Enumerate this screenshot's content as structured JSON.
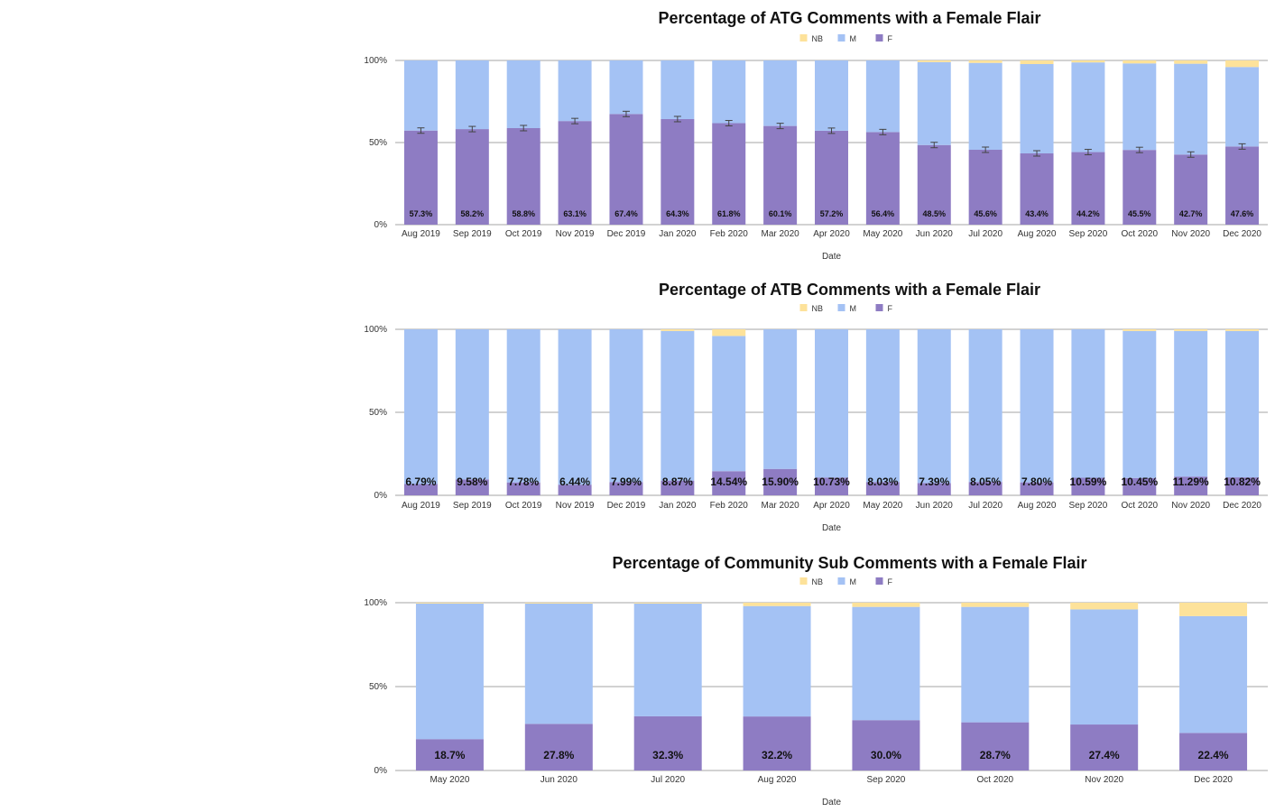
{
  "colors": {
    "NB": "#fde29a",
    "M": "#a4c2f4",
    "F": "#8e7cc3",
    "grid": "#b7b7b7",
    "errorbar": "#444444"
  },
  "chart_data": [
    {
      "type": "bar",
      "stacked": true,
      "title": "Percentage of ATG Comments with a Female Flair",
      "xlabel": "Date",
      "ylabel": "",
      "ylim": [
        0,
        100
      ],
      "yticks": [
        "0%",
        "50%",
        "100%"
      ],
      "legend": [
        "NB",
        "M",
        "F"
      ],
      "legend_position": "top",
      "grid": true,
      "error_bars": true,
      "categories": [
        "Aug 2019",
        "Sep 2019",
        "Oct 2019",
        "Nov 2019",
        "Dec 2019",
        "Jan 2020",
        "Feb 2020",
        "Mar 2020",
        "Apr 2020",
        "May 2020",
        "Jun 2020",
        "Jul 2020",
        "Aug 2020",
        "Sep 2020",
        "Oct 2020",
        "Nov 2020",
        "Dec 2020"
      ],
      "series": [
        {
          "name": "F",
          "values": [
            57.3,
            58.2,
            58.8,
            63.1,
            67.4,
            64.3,
            61.8,
            60.1,
            57.2,
            56.4,
            48.5,
            45.6,
            43.4,
            44.2,
            45.5,
            42.7,
            47.6
          ]
        },
        {
          "name": "M",
          "values": [
            42.7,
            41.8,
            41.2,
            36.9,
            32.6,
            35.7,
            38.2,
            39.9,
            42.8,
            43.6,
            50.5,
            52.9,
            54.4,
            54.6,
            52.7,
            55.3,
            48.4
          ]
        },
        {
          "name": "NB",
          "values": [
            0,
            0,
            0,
            0,
            0,
            0,
            0,
            0,
            0,
            0,
            1.0,
            1.5,
            2.2,
            1.2,
            1.8,
            2.0,
            4.0
          ]
        }
      ],
      "data_labels": [
        "57.3%",
        "58.2%",
        "58.8%",
        "63.1%",
        "67.4%",
        "64.3%",
        "61.8%",
        "60.1%",
        "57.2%",
        "56.4%",
        "48.5%",
        "45.6%",
        "43.4%",
        "44.2%",
        "45.5%",
        "42.7%",
        "47.6%"
      ]
    },
    {
      "type": "bar",
      "stacked": true,
      "title": "Percentage of ATB Comments with a Female Flair",
      "xlabel": "Date",
      "ylabel": "",
      "ylim": [
        0,
        100
      ],
      "yticks": [
        "0%",
        "50%",
        "100%"
      ],
      "legend": [
        "NB",
        "M",
        "F"
      ],
      "legend_position": "top",
      "grid": true,
      "categories": [
        "Aug 2019",
        "Sep 2019",
        "Oct 2019",
        "Nov 2019",
        "Dec 2019",
        "Jan 2020",
        "Feb 2020",
        "Mar 2020",
        "Apr 2020",
        "May 2020",
        "Jun 2020",
        "Jul 2020",
        "Aug 2020",
        "Sep 2020",
        "Oct 2020",
        "Nov 2020",
        "Dec 2020"
      ],
      "series": [
        {
          "name": "F",
          "values": [
            6.79,
            9.58,
            7.78,
            6.44,
            7.99,
            8.87,
            14.54,
            15.9,
            10.73,
            8.03,
            7.39,
            8.05,
            7.8,
            10.59,
            10.45,
            11.29,
            10.82
          ]
        },
        {
          "name": "M",
          "values": [
            93.21,
            90.42,
            92.22,
            93.56,
            92.01,
            90.13,
            81.46,
            84.1,
            89.27,
            91.97,
            92.61,
            91.95,
            92.2,
            89.41,
            88.55,
            87.71,
            88.18
          ]
        },
        {
          "name": "NB",
          "values": [
            0,
            0,
            0,
            0,
            0,
            1.0,
            4.0,
            0,
            0,
            0,
            0,
            0,
            0,
            0,
            1.0,
            1.0,
            1.0
          ]
        }
      ],
      "data_labels": [
        "6.79%",
        "9.58%",
        "7.78%",
        "6.44%",
        "7.99%",
        "8.87%",
        "14.54%",
        "15.90%",
        "10.73%",
        "8.03%",
        "7.39%",
        "8.05%",
        "7.80%",
        "10.59%",
        "10.45%",
        "11.29%",
        "10.82%"
      ]
    },
    {
      "type": "bar",
      "stacked": true,
      "title": "Percentage of Community Sub Comments with a Female Flair",
      "xlabel": "Date",
      "ylabel": "",
      "ylim": [
        0,
        100
      ],
      "yticks": [
        "0%",
        "50%",
        "100%"
      ],
      "legend": [
        "NB",
        "M",
        "F"
      ],
      "legend_position": "top",
      "grid": true,
      "categories": [
        "May 2020",
        "Jun 2020",
        "Jul 2020",
        "Aug 2020",
        "Sep 2020",
        "Oct 2020",
        "Nov 2020",
        "Dec 2020"
      ],
      "series": [
        {
          "name": "F",
          "values": [
            18.7,
            27.8,
            32.3,
            32.2,
            30.0,
            28.7,
            27.4,
            22.4
          ]
        },
        {
          "name": "M",
          "values": [
            80.8,
            71.7,
            67.2,
            65.8,
            67.5,
            68.8,
            68.6,
            69.6
          ]
        },
        {
          "name": "NB",
          "values": [
            0.5,
            0.5,
            0.5,
            2.0,
            2.5,
            2.5,
            4.0,
            8.0
          ]
        }
      ],
      "data_labels": [
        "18.7%",
        "27.8%",
        "32.3%",
        "32.2%",
        "30.0%",
        "28.7%",
        "27.4%",
        "22.4%"
      ]
    }
  ]
}
